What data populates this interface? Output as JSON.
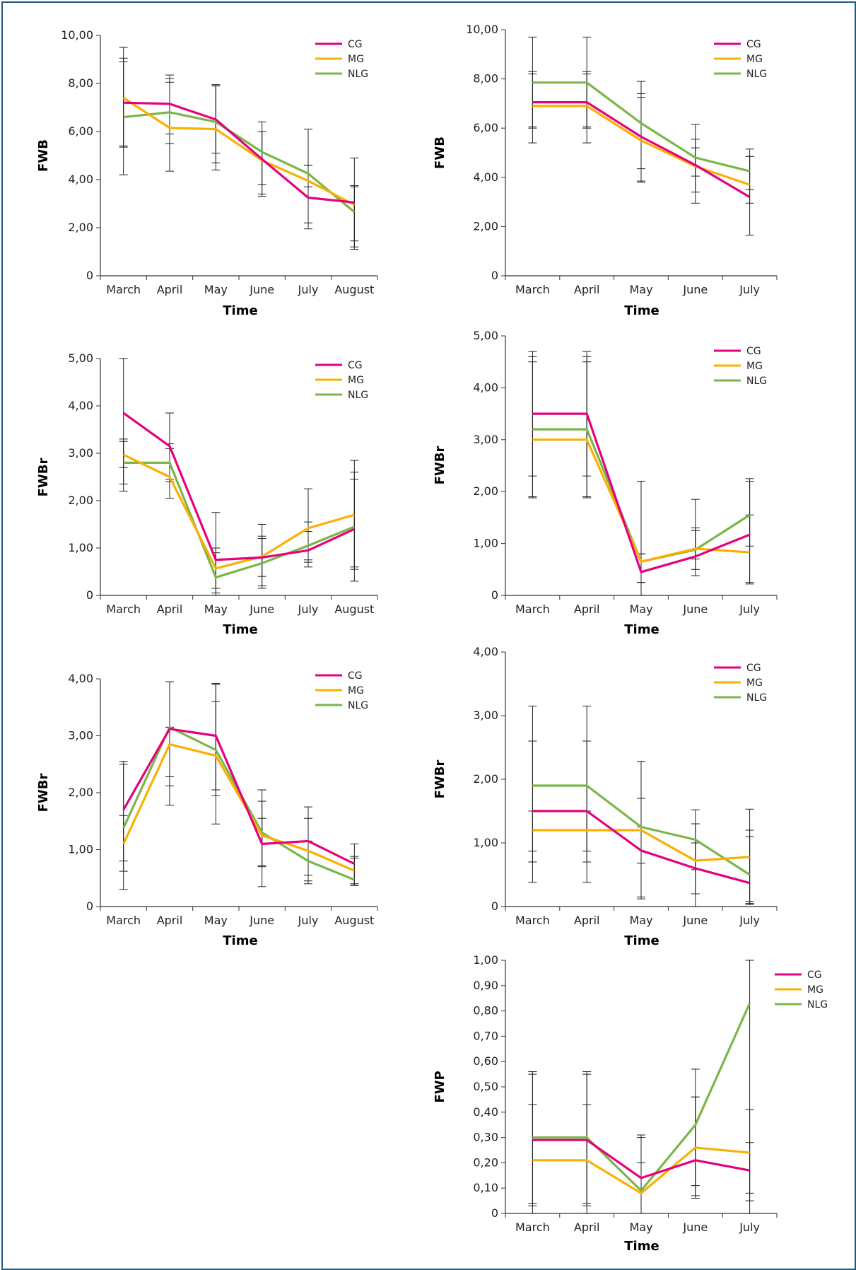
{
  "colors": {
    "CG": "#e5007e",
    "MG": "#fbb000",
    "NLG": "#7ab648",
    "axis": "#333333",
    "error": "#222222"
  },
  "legend_entries": [
    "CG",
    "MG",
    "NLG"
  ],
  "chart_data": [
    {
      "type": "line",
      "id": "c1",
      "categories": [
        "March",
        "April",
        "May",
        "June",
        "July",
        "August"
      ],
      "xlabel": "Time",
      "ylabel": "FWB",
      "ylim": [
        0,
        10
      ],
      "yticks": [
        0,
        2,
        4,
        6,
        8,
        10
      ],
      "ytick_labels": [
        "0",
        "2,00",
        "4,00",
        "6,00",
        "8,00",
        "10,00"
      ],
      "series": [
        {
          "name": "CG",
          "values": [
            7.2,
            7.15,
            6.5,
            4.85,
            3.25,
            3.05
          ],
          "err_hi": [
            9.5,
            8.35,
            7.9,
            6.4,
            6.1,
            4.9
          ],
          "err_lo": [
            4.2,
            5.5,
            5.1,
            3.3,
            2.2,
            1.1
          ]
        },
        {
          "name": "MG",
          "values": [
            7.4,
            6.15,
            6.1,
            4.8,
            3.95,
            2.95
          ],
          "err_hi": [
            9.05,
            8.05,
            7.95,
            6.0,
            4.6,
            3.75
          ],
          "err_lo": [
            5.35,
            4.35,
            4.4,
            3.4,
            1.95,
            1.45
          ]
        },
        {
          "name": "NLG",
          "values": [
            6.6,
            6.8,
            6.4,
            5.15,
            4.25,
            2.65
          ],
          "err_hi": [
            8.9,
            8.2,
            7.9,
            6.0,
            4.6,
            3.7
          ],
          "err_lo": [
            5.4,
            5.9,
            4.7,
            3.8,
            3.7,
            1.2
          ]
        }
      ]
    },
    {
      "type": "line",
      "id": "c2",
      "categories": [
        "March",
        "April",
        "May",
        "June",
        "July"
      ],
      "xlabel": "Time",
      "ylabel": "FWB",
      "ylim": [
        0,
        10
      ],
      "yticks": [
        0,
        2,
        4,
        6,
        8,
        10
      ],
      "ytick_labels": [
        "0",
        "2,00",
        "4,00",
        "6,00",
        "8,00",
        "10,00"
      ],
      "series": [
        {
          "name": "CG",
          "values": [
            7.05,
            7.05,
            5.65,
            4.5,
            3.2
          ],
          "err_hi": [
            8.3,
            8.3,
            7.4,
            6.15,
            4.85
          ],
          "err_lo": [
            5.4,
            5.4,
            3.85,
            2.95,
            1.65
          ]
        },
        {
          "name": "MG",
          "values": [
            6.9,
            6.9,
            5.5,
            4.45,
            3.7
          ],
          "err_hi": [
            8.2,
            8.2,
            7.25,
            5.55,
            4.85
          ],
          "err_lo": [
            6.0,
            6.0,
            3.8,
            3.4,
            2.95
          ]
        },
        {
          "name": "NLG",
          "values": [
            7.85,
            7.85,
            6.2,
            4.8,
            4.25
          ],
          "err_hi": [
            9.7,
            9.7,
            7.9,
            5.2,
            5.15
          ],
          "err_lo": [
            6.05,
            6.05,
            4.35,
            4.05,
            3.5
          ]
        }
      ]
    },
    {
      "type": "line",
      "id": "c3",
      "categories": [
        "March",
        "April",
        "May",
        "June",
        "July",
        "August"
      ],
      "xlabel": "Time",
      "ylabel": "FWBr",
      "ylim": [
        0,
        5
      ],
      "yticks": [
        0,
        1,
        2,
        3,
        4,
        5
      ],
      "ytick_labels": [
        "0",
        "1,00",
        "2,00",
        "3,00",
        "4,00",
        "5,00"
      ],
      "series": [
        {
          "name": "CG",
          "values": [
            3.85,
            3.15,
            0.75,
            0.8,
            0.95,
            1.4
          ],
          "err_hi": [
            5.0,
            3.85,
            1.75,
            1.5,
            2.25,
            2.85
          ],
          "err_lo": [
            2.7,
            2.45,
            0.0,
            0.15,
            0.6,
            0.3
          ]
        },
        {
          "name": "MG",
          "values": [
            2.97,
            2.5,
            0.57,
            0.82,
            1.42,
            1.7
          ],
          "err_hi": [
            3.3,
            3.1,
            1.0,
            1.25,
            1.55,
            2.6
          ],
          "err_lo": [
            2.2,
            2.05,
            0.15,
            0.4,
            0.7,
            0.6
          ]
        },
        {
          "name": "NLG",
          "values": [
            2.8,
            2.8,
            0.38,
            0.68,
            1.05,
            1.45
          ],
          "err_hi": [
            3.25,
            3.2,
            0.9,
            1.2,
            1.35,
            2.45
          ],
          "err_lo": [
            2.35,
            2.4,
            0.05,
            0.2,
            0.75,
            0.55
          ]
        }
      ]
    },
    {
      "type": "line",
      "id": "c4",
      "categories": [
        "March",
        "April",
        "May",
        "June",
        "July"
      ],
      "xlabel": "Time",
      "ylabel": "FWBr",
      "ylim": [
        0,
        5
      ],
      "yticks": [
        0,
        1,
        2,
        3,
        4,
        5
      ],
      "ytick_labels": [
        "0",
        "1,00",
        "2,00",
        "3,00",
        "4,00",
        "5,00"
      ],
      "series": [
        {
          "name": "CG",
          "values": [
            3.5,
            3.5,
            0.45,
            0.75,
            1.17
          ],
          "err_hi": [
            4.7,
            4.7,
            2.2,
            1.85,
            2.25
          ],
          "err_lo": [
            2.3,
            2.3,
            0.0,
            0.38,
            0.22
          ]
        },
        {
          "name": "MG",
          "values": [
            3.0,
            3.0,
            0.65,
            0.9,
            0.83
          ],
          "err_hi": [
            4.5,
            4.5,
            0.8,
            1.3,
            2.2
          ],
          "err_lo": [
            1.88,
            1.88,
            0.25,
            0.5,
            0.25
          ]
        },
        {
          "name": "NLG",
          "values": [
            3.2,
            3.2,
            0.65,
            0.88,
            1.55
          ],
          "err_hi": [
            4.6,
            4.6,
            0.8,
            1.25,
            1.55
          ],
          "err_lo": [
            1.9,
            1.9,
            0.25,
            0.7,
            0.95
          ]
        }
      ]
    },
    {
      "type": "line",
      "id": "c5",
      "categories": [
        "March",
        "April",
        "May",
        "June",
        "July",
        "August"
      ],
      "xlabel": "Time",
      "ylabel": "FWBr",
      "ylim": [
        0,
        4
      ],
      "yticks": [
        0,
        1,
        2,
        3,
        4
      ],
      "ytick_labels": [
        "0",
        "1,00",
        "2,00",
        "3,00",
        "4,00"
      ],
      "series": [
        {
          "name": "CG",
          "values": [
            1.7,
            3.12,
            3.0,
            1.1,
            1.15,
            0.75
          ],
          "err_hi": [
            2.55,
            3.95,
            3.92,
            2.05,
            1.75,
            1.1
          ],
          "err_lo": [
            0.8,
            2.28,
            2.05,
            0.7,
            0.55,
            0.4
          ]
        },
        {
          "name": "MG",
          "values": [
            1.1,
            2.85,
            2.65,
            1.25,
            0.98,
            0.63
          ],
          "err_hi": [
            1.6,
            3.15,
            3.9,
            1.85,
            1.55,
            0.88
          ],
          "err_lo": [
            0.3,
            1.78,
            1.45,
            0.35,
            0.4,
            0.37
          ]
        },
        {
          "name": "NLG",
          "values": [
            1.38,
            3.15,
            2.75,
            1.3,
            0.8,
            0.47
          ],
          "err_hi": [
            2.5,
            3.15,
            3.6,
            1.55,
            1.15,
            0.85
          ],
          "err_lo": [
            0.62,
            2.12,
            1.95,
            0.72,
            0.45,
            0.37
          ]
        }
      ]
    },
    {
      "type": "line",
      "id": "c6",
      "categories": [
        "March",
        "April",
        "May",
        "June",
        "July"
      ],
      "xlabel": "Time",
      "ylabel": "FWBr",
      "ylim": [
        0,
        4
      ],
      "yticks": [
        0,
        1,
        2,
        3,
        4
      ],
      "ytick_labels": [
        "0",
        "1,00",
        "2,00",
        "3,00",
        "4,00"
      ],
      "series": [
        {
          "name": "CG",
          "values": [
            1.5,
            1.5,
            0.88,
            0.6,
            0.37
          ],
          "err_hi": [
            2.6,
            2.6,
            1.7,
            1.0,
            1.2
          ],
          "err_lo": [
            0.38,
            0.38,
            0.12,
            0.0,
            0.05
          ]
        },
        {
          "name": "MG",
          "values": [
            1.2,
            1.2,
            1.2,
            0.72,
            0.78
          ],
          "err_hi": [
            1.5,
            1.5,
            2.28,
            1.3,
            1.53
          ],
          "err_lo": [
            0.7,
            0.7,
            0.15,
            0.2,
            0.03
          ]
        },
        {
          "name": "NLG",
          "values": [
            1.9,
            1.9,
            1.25,
            1.05,
            0.5
          ],
          "err_hi": [
            3.15,
            3.15,
            1.25,
            1.52,
            1.1
          ],
          "err_lo": [
            0.87,
            0.87,
            0.68,
            0.58,
            0.08
          ]
        }
      ]
    },
    {
      "type": "line",
      "id": "c7",
      "categories": [
        "March",
        "April",
        "May",
        "June",
        "July"
      ],
      "xlabel": "Time",
      "ylabel": "FWP",
      "ylim": [
        0,
        1
      ],
      "yticks": [
        0,
        0.1,
        0.2,
        0.3,
        0.4,
        0.5,
        0.6,
        0.7,
        0.8,
        0.9,
        1.0
      ],
      "ytick_labels": [
        "0",
        "0,10",
        "0,20",
        "0,30",
        "0,40",
        "0,50",
        "0,60",
        "0,70",
        "0,80",
        "0,90",
        "1,00"
      ],
      "series": [
        {
          "name": "CG",
          "values": [
            0.29,
            0.29,
            0.14,
            0.21,
            0.17
          ],
          "err_hi": [
            0.56,
            0.56,
            0.31,
            0.46,
            0.41
          ],
          "err_lo": [
            0.03,
            0.03,
            0.0,
            0.07,
            0.0
          ]
        },
        {
          "name": "MG",
          "values": [
            0.21,
            0.21,
            0.08,
            0.26,
            0.24
          ],
          "err_hi": [
            0.43,
            0.43,
            0.3,
            0.57,
            0.28
          ],
          "err_lo": [
            0.0,
            0.0,
            0.0,
            0.06,
            0.05
          ]
        },
        {
          "name": "NLG",
          "values": [
            0.3,
            0.3,
            0.09,
            0.35,
            0.83
          ],
          "err_hi": [
            0.55,
            0.55,
            0.2,
            0.46,
            1.0
          ],
          "err_lo": [
            0.04,
            0.04,
            0.0,
            0.11,
            0.08
          ]
        }
      ]
    }
  ]
}
